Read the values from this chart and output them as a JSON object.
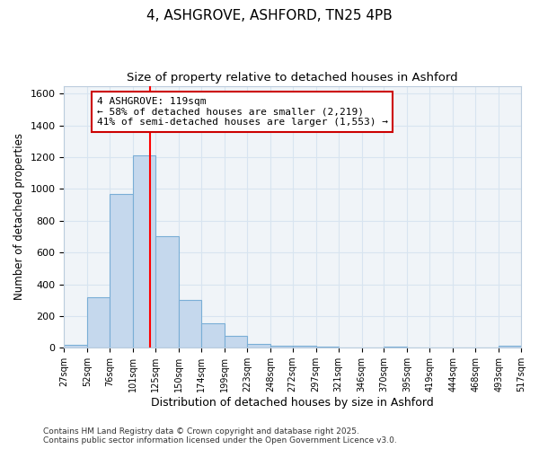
{
  "title1": "4, ASHGROVE, ASHFORD, TN25 4PB",
  "title2": "Size of property relative to detached houses in Ashford",
  "xlabel": "Distribution of detached houses by size in Ashford",
  "ylabel": "Number of detached properties",
  "bins": [
    27,
    52,
    76,
    101,
    125,
    150,
    174,
    199,
    223,
    248,
    272,
    297,
    321,
    346,
    370,
    395,
    419,
    444,
    468,
    493,
    517
  ],
  "bin_labels": [
    "27sqm",
    "52sqm",
    "76sqm",
    "101sqm",
    "125sqm",
    "150sqm",
    "174sqm",
    "199sqm",
    "223sqm",
    "248sqm",
    "272sqm",
    "297sqm",
    "321sqm",
    "346sqm",
    "370sqm",
    "395sqm",
    "419sqm",
    "444sqm",
    "468sqm",
    "493sqm",
    "517sqm"
  ],
  "counts": [
    20,
    320,
    970,
    1210,
    700,
    300,
    155,
    75,
    25,
    15,
    10,
    5,
    3,
    2,
    5,
    1,
    1,
    1,
    0,
    15
  ],
  "bar_color": "#c5d8ed",
  "bar_edge_color": "#7aaed6",
  "red_line_x": 119,
  "ylim": [
    0,
    1650
  ],
  "yticks": [
    0,
    200,
    400,
    600,
    800,
    1000,
    1200,
    1400,
    1600
  ],
  "annotation_line1": "4 ASHGROVE: 119sqm",
  "annotation_line2": "← 58% of detached houses are smaller (2,219)",
  "annotation_line3": "41% of semi-detached houses are larger (1,553) →",
  "annotation_box_color": "#ffffff",
  "annotation_border_color": "#cc0000",
  "footer1": "Contains HM Land Registry data © Crown copyright and database right 2025.",
  "footer2": "Contains public sector information licensed under the Open Government Licence v3.0.",
  "bg_color": "#ffffff",
  "plot_bg_color": "#f0f4f8",
  "grid_color": "#d8e4f0"
}
